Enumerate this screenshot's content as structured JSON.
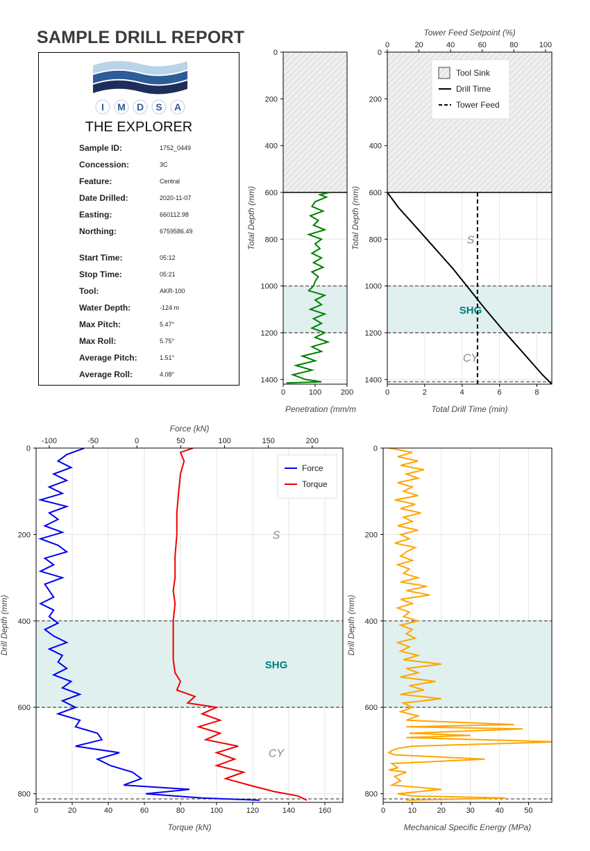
{
  "report": {
    "title": "SAMPLE DRILL REPORT",
    "vessel": "THE EXPLORER",
    "logo_letters": [
      "I",
      "M",
      "D",
      "S",
      "A"
    ],
    "info": [
      {
        "label": "Sample ID:",
        "value": "1752_0449"
      },
      {
        "label": "Concession:",
        "value": "3C"
      },
      {
        "label": "Feature:",
        "value": "Central"
      },
      {
        "label": "Date Drilled:",
        "value": "2020-11-07"
      },
      {
        "label": "Easting:",
        "value": "660112.98"
      },
      {
        "label": "Northing:",
        "value": "6759586.49"
      },
      {
        "label": "Start Time:",
        "value": "05:12"
      },
      {
        "label": "Stop Time:",
        "value": "05:21"
      },
      {
        "label": "Tool:",
        "value": "AKR-100"
      },
      {
        "label": "Water Depth:",
        "value": "-124 m"
      },
      {
        "label": "Max Pitch:",
        "value": "5.47°"
      },
      {
        "label": "Max Roll:",
        "value": "5.75°"
      },
      {
        "label": "Average Pitch:",
        "value": "1.51°"
      },
      {
        "label": "Average Roll:",
        "value": "4.08°"
      }
    ]
  },
  "colors": {
    "penetration": "#008000",
    "drill_time": "#000000",
    "force": "#0000ee",
    "torque": "#ee0000",
    "mse": "#ffa500",
    "shg_label": "#007c80",
    "zone_shade": "#dff0ef",
    "layer_label": "#888888"
  },
  "chart_data": [
    {
      "type": "line",
      "id": "penetration",
      "xlabel": "Penetration (mm/m",
      "ylabel": "Total Depth (mm)",
      "xlim": [
        0,
        200
      ],
      "ylim": [
        1420,
        0
      ],
      "xticks": [
        0,
        100,
        200
      ],
      "yticks": [
        0,
        200,
        400,
        600,
        800,
        1000,
        1200,
        1400
      ],
      "tool_sink": [
        0,
        600
      ],
      "zone": [
        1000,
        1200
      ],
      "boundaries": [
        1000,
        1200
      ],
      "series": [
        {
          "depth": [
            600,
            610,
            620,
            640,
            660,
            680,
            700,
            720,
            740,
            760,
            780,
            800,
            820,
            840,
            860,
            880,
            900,
            920,
            940,
            960,
            980,
            1000,
            1020,
            1040,
            1060,
            1080,
            1100,
            1120,
            1140,
            1160,
            1180,
            1200,
            1220,
            1240,
            1260,
            1280,
            1300,
            1320,
            1340,
            1360,
            1380,
            1400,
            1410,
            1415
          ],
          "values": [
            145,
            115,
            135,
            100,
            90,
            125,
            85,
            110,
            95,
            130,
            80,
            120,
            100,
            115,
            90,
            120,
            95,
            125,
            90,
            110,
            100,
            95,
            80,
            130,
            100,
            120,
            85,
            130,
            95,
            120,
            90,
            130,
            100,
            140,
            90,
            120,
            60,
            100,
            40,
            90,
            30,
            70,
            120,
            10
          ]
        }
      ]
    },
    {
      "type": "line",
      "id": "drill-time",
      "xlabel": "Total Drill Time (min)",
      "x2label": "Tower Feed Setpoint (%)",
      "ylabel": "Total Depth (mm)",
      "xlim": [
        0,
        8.8
      ],
      "x2lim": [
        0,
        104
      ],
      "ylim": [
        1420,
        0
      ],
      "xticks": [
        0,
        2,
        4,
        6,
        8
      ],
      "x2ticks": [
        0,
        20,
        40,
        60,
        80,
        100
      ],
      "yticks": [
        0,
        200,
        400,
        600,
        800,
        1000,
        1200,
        1400
      ],
      "tool_sink": [
        0,
        600
      ],
      "zone": [
        1000,
        1200
      ],
      "boundaries": [
        1000,
        1200,
        1410
      ],
      "legend": [
        "Tool Sink",
        "Drill Time",
        "Tower Feed"
      ],
      "layers": [
        {
          "label": "S",
          "depth": 800
        },
        {
          "label": "SHG",
          "depth": 1100
        },
        {
          "label": "CY",
          "depth": 1305
        }
      ],
      "series": [
        {
          "name": "Drill Time",
          "x": [
            0,
            0.6,
            1.5,
            2.5,
            3.5,
            4.3,
            5.2,
            6.2,
            7.2,
            8.3,
            8.8
          ],
          "depth": [
            600,
            665,
            745,
            835,
            925,
            1005,
            1095,
            1190,
            1280,
            1380,
            1420
          ]
        },
        {
          "name": "Tower Feed",
          "x": [
            57,
            57
          ],
          "depth": [
            600,
            1420
          ]
        }
      ]
    },
    {
      "type": "line",
      "id": "force-torque",
      "xlabel": "Torque (kN)",
      "x2label": "Force (kN)",
      "ylabel": "Drill Depth (mm)",
      "xlim": [
        0,
        170
      ],
      "x2lim": [
        -115,
        235
      ],
      "ylim": [
        820,
        0
      ],
      "xticks": [
        0,
        20,
        40,
        60,
        80,
        100,
        120,
        140,
        160
      ],
      "x2ticks": [
        -100,
        -50,
        0,
        50,
        100,
        150,
        200
      ],
      "yticks": [
        0,
        200,
        400,
        600,
        800
      ],
      "zone": [
        400,
        600
      ],
      "boundaries": [
        400,
        600,
        812
      ],
      "legend": [
        "Force",
        "Torque"
      ],
      "layers": [
        {
          "label": "S",
          "depth": 200
        },
        {
          "label": "SHG",
          "depth": 500
        },
        {
          "label": "CY",
          "depth": 705
        }
      ],
      "series": [
        {
          "name": "Force",
          "axis": "x2",
          "depth": [
            0,
            15,
            30,
            45,
            60,
            75,
            90,
            105,
            120,
            135,
            150,
            165,
            180,
            195,
            210,
            225,
            240,
            255,
            270,
            285,
            300,
            315,
            330,
            345,
            360,
            375,
            390,
            405,
            420,
            435,
            450,
            465,
            480,
            495,
            510,
            525,
            540,
            555,
            570,
            585,
            600,
            615,
            630,
            645,
            660,
            675,
            690,
            705,
            720,
            735,
            750,
            765,
            780,
            790,
            800,
            810,
            815
          ],
          "values": [
            -60,
            -80,
            -90,
            -75,
            -95,
            -80,
            -100,
            -85,
            -110,
            -80,
            -100,
            -90,
            -105,
            -85,
            -110,
            -90,
            -80,
            -105,
            -95,
            -110,
            -85,
            -105,
            -100,
            -95,
            -110,
            -95,
            -100,
            -90,
            -105,
            -95,
            -80,
            -100,
            -85,
            -90,
            -80,
            -95,
            -75,
            -85,
            -65,
            -85,
            -70,
            -90,
            -65,
            -70,
            -45,
            -40,
            -70,
            -20,
            -45,
            -30,
            -5,
            5,
            -15,
            60,
            10,
            75,
            140
          ]
        },
        {
          "name": "Torque",
          "axis": "x1",
          "depth": [
            0,
            10,
            30,
            60,
            100,
            150,
            200,
            250,
            300,
            330,
            360,
            400,
            450,
            490,
            520,
            540,
            560,
            575,
            590,
            600,
            615,
            630,
            645,
            660,
            675,
            690,
            705,
            720,
            735,
            750,
            765,
            780,
            795,
            805,
            815
          ],
          "values": [
            87,
            80,
            82,
            80,
            79,
            78,
            78,
            77,
            77,
            76,
            77,
            76,
            76,
            76,
            77,
            80,
            78,
            88,
            84,
            100,
            92,
            102,
            90,
            102,
            94,
            112,
            100,
            110,
            100,
            115,
            105,
            118,
            132,
            145,
            150
          ]
        }
      ]
    },
    {
      "type": "line",
      "id": "mse",
      "xlabel": "Mechanical Specific Energy (MPa)",
      "ylabel": "Drill Depth (mm)",
      "xlim": [
        0,
        58
      ],
      "ylim": [
        820,
        0
      ],
      "xticks": [
        0,
        10,
        20,
        30,
        40,
        50
      ],
      "yticks": [
        0,
        200,
        400,
        600,
        800
      ],
      "zone": [
        400,
        600
      ],
      "boundaries": [
        400,
        600,
        812
      ],
      "series": [
        {
          "depth": [
            0,
            10,
            20,
            30,
            40,
            50,
            60,
            70,
            80,
            90,
            100,
            110,
            120,
            130,
            140,
            150,
            160,
            170,
            180,
            190,
            200,
            210,
            220,
            230,
            240,
            250,
            260,
            270,
            280,
            290,
            300,
            310,
            320,
            330,
            340,
            350,
            360,
            370,
            380,
            390,
            400,
            410,
            420,
            430,
            440,
            450,
            460,
            470,
            480,
            490,
            500,
            510,
            520,
            530,
            540,
            550,
            560,
            570,
            580,
            590,
            600,
            610,
            620,
            630,
            640,
            645,
            650,
            660,
            665,
            670,
            680,
            690,
            695,
            700,
            705,
            710,
            720,
            730,
            740,
            745,
            750,
            760,
            770,
            780,
            790,
            800,
            805,
            810,
            815
          ],
          "values": [
            2,
            10,
            5,
            12,
            6,
            14,
            8,
            12,
            5,
            10,
            7,
            12,
            4,
            11,
            6,
            13,
            7,
            10,
            5,
            12,
            6,
            9,
            4,
            11,
            8,
            6,
            10,
            5,
            9,
            7,
            12,
            6,
            15,
            8,
            16,
            6,
            10,
            5,
            9,
            7,
            12,
            6,
            10,
            8,
            11,
            5,
            9,
            6,
            12,
            7,
            20,
            8,
            12,
            6,
            18,
            9,
            14,
            6,
            20,
            7,
            10,
            6,
            12,
            8,
            45,
            8,
            48,
            9,
            30,
            8,
            60,
            10,
            5,
            3,
            2,
            4,
            35,
            3,
            5,
            2,
            8,
            4,
            6,
            3,
            20,
            5,
            10,
            42,
            8
          ]
        }
      ]
    }
  ]
}
